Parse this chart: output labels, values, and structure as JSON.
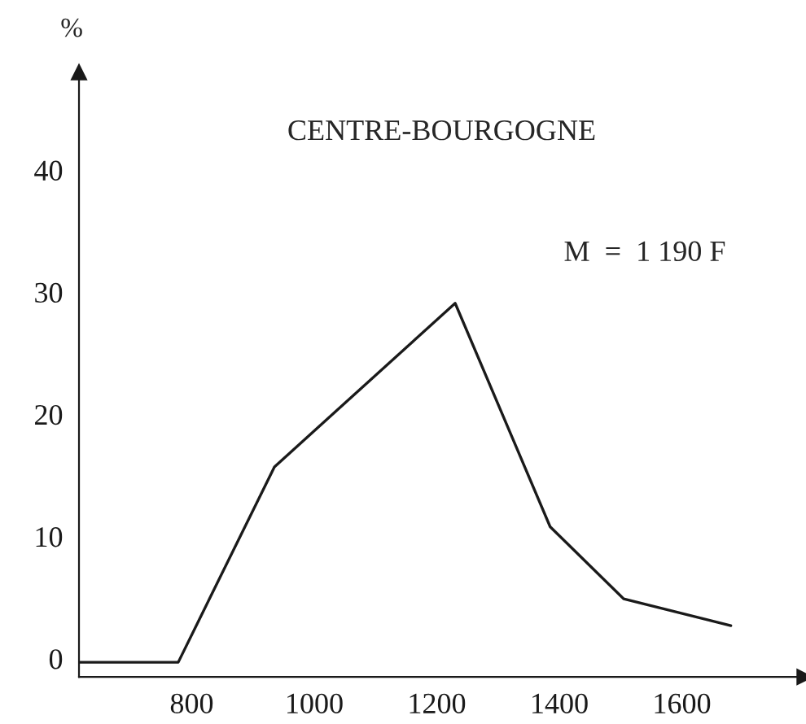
{
  "chart_data": {
    "type": "line",
    "title": "CENTRE-BOURGOGNE",
    "ylabel": "%",
    "x": [
      616,
      778,
      935,
      1230,
      1385,
      1505,
      1680
    ],
    "values": [
      -0.3,
      -0.3,
      15.7,
      29.1,
      10.8,
      4.9,
      2.7
    ],
    "color": "#1a1a1a",
    "xlim": [
      616,
      1800
    ],
    "ylim": [
      -1.5,
      48
    ],
    "xticks": [
      800,
      1000,
      1200,
      1400,
      1600
    ],
    "yticks": [
      0,
      10,
      20,
      30,
      40
    ],
    "annotations": [
      "M  =  1 190 F"
    ],
    "grid": false,
    "legend": false,
    "line_style": "solid",
    "marker": "none"
  }
}
